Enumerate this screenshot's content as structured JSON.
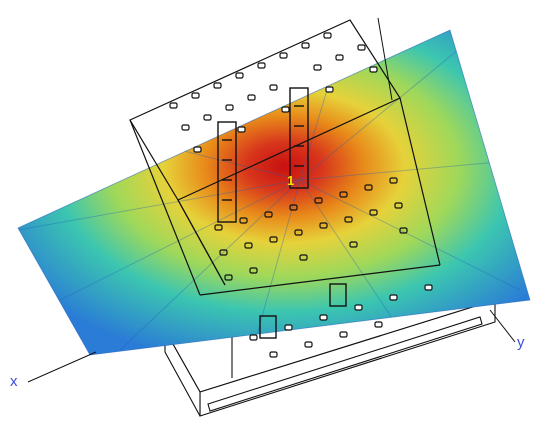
{
  "axes": {
    "x": "x",
    "y": "y",
    "marker": "1"
  },
  "colors": {
    "hot": "#c81010",
    "warm": "#e88a1a",
    "mid": "#e6d23a",
    "cool": "#3cc6b0",
    "cold": "#2a7cd6",
    "outline": "#111111"
  },
  "icons": {
    "via": "square-via-icon"
  }
}
